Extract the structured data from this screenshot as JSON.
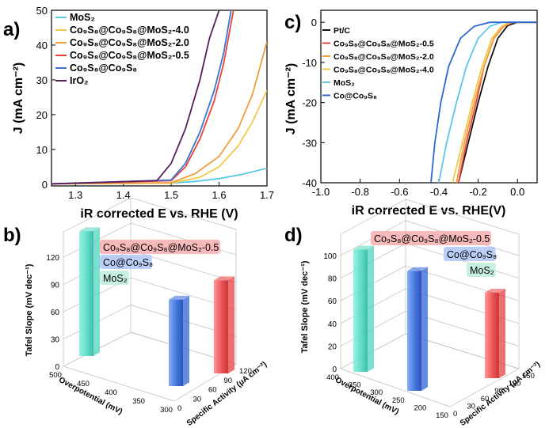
{
  "panels": {
    "a": "a)",
    "b": "b)",
    "c": "c)",
    "d": "d)"
  },
  "chart_data": [
    {
      "id": "a",
      "type": "line",
      "xlabel": "iR corrected E vs. RHE (V)",
      "ylabel": "J (mA cm⁻²)",
      "xlim": [
        1.25,
        1.7
      ],
      "ylim": [
        -0.5,
        50
      ],
      "xticks": [
        "1.3",
        "1.4",
        "1.5",
        "1.6",
        "1.7"
      ],
      "xtick_values": [
        1.3,
        1.4,
        1.5,
        1.6,
        1.7
      ],
      "yticks": [
        "0",
        "10",
        "20",
        "30",
        "40",
        "50"
      ],
      "ytick_values": [
        0,
        10,
        20,
        30,
        40,
        50
      ],
      "legend_position": "top-left",
      "series": [
        {
          "name": "MoS₂",
          "color": "#5bc8e8",
          "x": [
            1.25,
            1.5,
            1.55,
            1.6,
            1.65,
            1.7
          ],
          "y": [
            0.1,
            0.3,
            0.8,
            1.6,
            2.9,
            4.6
          ]
        },
        {
          "name": "Co₉S₈@Co₉S₈@MoS₂-4.0",
          "color": "#f2c84b",
          "x": [
            1.25,
            1.5,
            1.56,
            1.6,
            1.64,
            1.67,
            1.7
          ],
          "y": [
            0.1,
            0.3,
            2,
            5,
            11,
            18,
            27
          ]
        },
        {
          "name": "Co₉S₈@Co₉S₈@MoS₂-2.0",
          "color": "#f39c3a",
          "x": [
            1.25,
            1.5,
            1.55,
            1.6,
            1.64,
            1.67,
            1.7
          ],
          "y": [
            0.1,
            0.4,
            3,
            8,
            16,
            26,
            41
          ]
        },
        {
          "name": "Co₉S₈@Co₉S₈@MoS₂-0.5",
          "color": "#e8443a",
          "x": [
            1.25,
            1.5,
            1.53,
            1.56,
            1.59,
            1.61,
            1.63
          ],
          "y": [
            0.1,
            1,
            5,
            13,
            24,
            35,
            50
          ]
        },
        {
          "name": "Co₉S₈@Co₉S₈",
          "color": "#3a73d6",
          "x": [
            1.25,
            1.5,
            1.53,
            1.56,
            1.59,
            1.61,
            1.625
          ],
          "y": [
            0.1,
            1.2,
            6,
            15,
            27,
            38,
            50
          ]
        },
        {
          "name": "IrO₂",
          "color": "#5a1a5e",
          "x": [
            1.25,
            1.47,
            1.5,
            1.53,
            1.56,
            1.58,
            1.6
          ],
          "y": [
            0.1,
            1,
            6,
            16,
            30,
            42,
            50
          ]
        }
      ]
    },
    {
      "id": "c",
      "type": "line",
      "xlabel": "iR corrected E vs. RHE(V)",
      "ylabel": "J (mA cm⁻²)",
      "xlim": [
        -1.0,
        0.1
      ],
      "ylim": [
        -40,
        3
      ],
      "xticks": [
        "-1.0",
        "-0.8",
        "-0.6",
        "-0.4",
        "-0.2",
        "0.0"
      ],
      "xtick_values": [
        -1.0,
        -0.8,
        -0.6,
        -0.4,
        -0.2,
        0.0
      ],
      "yticks": [
        "0",
        "-10",
        "-20",
        "-30",
        "-40"
      ],
      "ytick_values": [
        0,
        -10,
        -20,
        -30,
        -40
      ],
      "legend_position": "top-left",
      "series": [
        {
          "name": "Pt/C",
          "color": "#111111",
          "x": [
            -0.3,
            -0.25,
            -0.2,
            -0.15,
            -0.1,
            -0.05,
            0.0,
            0.1
          ],
          "y": [
            -40,
            -30,
            -20,
            -11,
            -4,
            -0.8,
            0,
            0
          ]
        },
        {
          "name": "Co₉S₈@Co₉S₈@MoS₂-0.5",
          "color": "#e8443a",
          "x": [
            -0.3,
            -0.26,
            -0.21,
            -0.17,
            -0.12,
            -0.07,
            -0.02,
            0.1
          ],
          "y": [
            -40,
            -30,
            -20,
            -11,
            -4,
            -1,
            0,
            0
          ]
        },
        {
          "name": "Co₉S₈@Co₉S₈@MoS₂-2.0",
          "color": "#f39c3a",
          "x": [
            -0.31,
            -0.27,
            -0.22,
            -0.17,
            -0.12,
            -0.07,
            -0.03,
            0.1
          ],
          "y": [
            -40,
            -30,
            -20,
            -11,
            -4,
            -1,
            0,
            0
          ]
        },
        {
          "name": "Co₉S₈@Co₉S₈@MoS₂-4.0",
          "color": "#f2c84b",
          "x": [
            -0.33,
            -0.28,
            -0.23,
            -0.18,
            -0.13,
            -0.08,
            -0.04,
            0.1
          ],
          "y": [
            -40,
            -30,
            -20,
            -11,
            -4,
            -1,
            0,
            0
          ]
        },
        {
          "name": "MoS₂",
          "color": "#5bc8e8",
          "x": [
            -0.4,
            -0.36,
            -0.31,
            -0.26,
            -0.2,
            -0.14,
            -0.08,
            0.1
          ],
          "y": [
            -40,
            -30,
            -20,
            -11,
            -4,
            -1,
            0,
            0
          ]
        },
        {
          "name": "Co@Co₉S₈",
          "color": "#2c66d2",
          "x": [
            -0.44,
            -0.42,
            -0.39,
            -0.35,
            -0.29,
            -0.22,
            -0.14,
            0.1
          ],
          "y": [
            -40,
            -30,
            -20,
            -11,
            -4,
            -1,
            0,
            0
          ]
        }
      ]
    },
    {
      "id": "b",
      "type": "bar",
      "zlabel": "Tafel Slope (mV dec⁻¹)",
      "xlabel": "Overpotential (mV)",
      "ylabel": "Specific Activity (μA cm⁻²)",
      "zticks": [
        "0",
        "30",
        "60",
        "90",
        "120"
      ],
      "zmax": 140,
      "overpotential_ticks": [
        "300",
        "350",
        "400",
        "450",
        "500"
      ],
      "activity_ticks": [
        "0",
        "30",
        "60",
        "90",
        "120"
      ],
      "legend": [
        "Co₉S₈@Co₉S₈@MoS₂-0.5",
        "Co@Co₉S₈",
        "MoS₂"
      ],
      "categories": [
        "MoS₂",
        "Co@Co₉S₈",
        "Co₉S₈@Co₉S₈@MoS₂-0.5"
      ],
      "values": [
        130,
        90,
        97
      ],
      "colors": [
        "#4fd6c0",
        "#2f64d8",
        "#e84040"
      ]
    },
    {
      "id": "d",
      "type": "bar",
      "zlabel": "Tafel Slope (mV dec⁻¹)",
      "xlabel": "Overpotential (mV)",
      "ylabel": "Specific Activity (μA cm⁻²)",
      "zticks": [
        "0",
        "20",
        "40",
        "60",
        "80",
        "100"
      ],
      "zmax": 110,
      "overpotential_ticks": [
        "150",
        "200",
        "250",
        "300",
        "350",
        "400"
      ],
      "activity_ticks": [
        "0",
        "30",
        "60",
        "90",
        "120",
        "150"
      ],
      "legend": [
        "Co₉S₈@Co₉S₈@MoS₂-0.5",
        "Co@Co₉S₈",
        "MoS₂"
      ],
      "categories": [
        "MoS₂",
        "Co@Co₉S₈",
        "Co₉S₈@Co₉S₈@MoS₂-0.5"
      ],
      "values": [
        100,
        98,
        70
      ],
      "colors": [
        "#4fd6c0",
        "#2f64d8",
        "#e84040"
      ]
    }
  ]
}
